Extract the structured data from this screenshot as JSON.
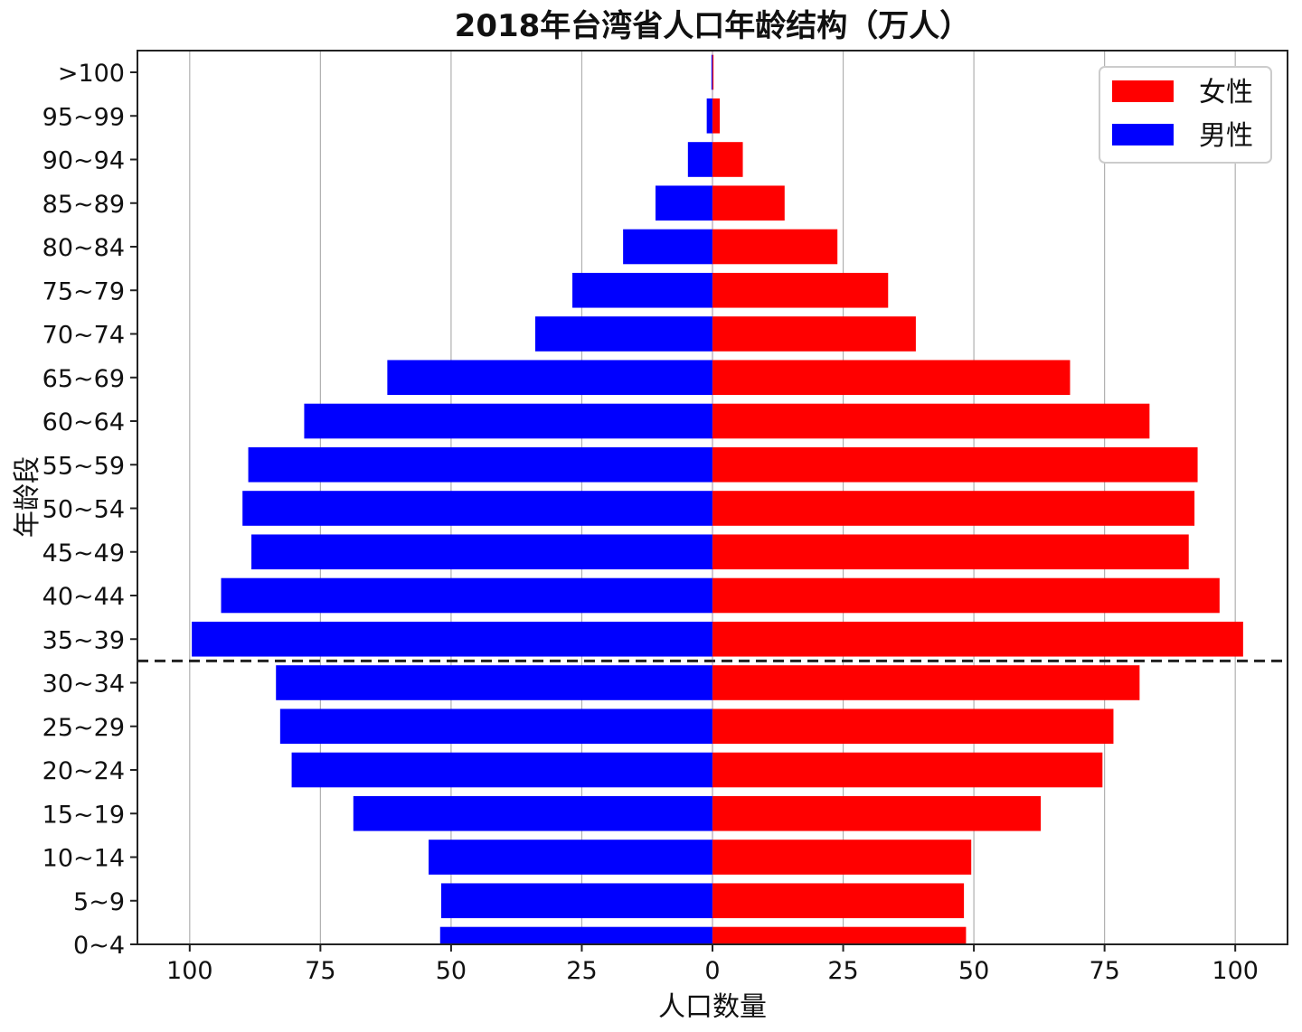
{
  "chart_data": {
    "type": "bar",
    "orientation": "horizontal",
    "subtype": "population-pyramid",
    "title": "2018年台湾省人口年龄结构（万人）",
    "xlabel": "人口数量",
    "ylabel": "年龄段",
    "categories": [
      "0~4",
      "5~9",
      "10~14",
      "15~19",
      "20~24",
      "25~29",
      "30~34",
      "35~39",
      "40~44",
      "45~49",
      "50~54",
      "55~59",
      "60~64",
      "65~69",
      "70~74",
      "75~79",
      "80~84",
      "85~89",
      "90~94",
      "95~99",
      ">100"
    ],
    "series": [
      {
        "name": "女性",
        "color": "#ff0000",
        "side": "right",
        "values": [
          48.5,
          48.1,
          49.5,
          62.8,
          74.6,
          76.7,
          81.7,
          101.5,
          97.0,
          91.1,
          92.2,
          92.8,
          83.6,
          68.4,
          38.9,
          33.6,
          23.9,
          13.8,
          5.8,
          1.4,
          0.2
        ]
      },
      {
        "name": "男性",
        "color": "#0000ff",
        "side": "left",
        "values": [
          52.1,
          51.9,
          54.3,
          68.7,
          80.5,
          82.7,
          83.5,
          99.6,
          94.0,
          88.2,
          89.9,
          88.8,
          78.1,
          62.2,
          33.9,
          26.8,
          17.1,
          10.9,
          4.7,
          1.1,
          0.2
        ]
      }
    ],
    "xlim": [
      -110,
      110
    ],
    "xticks": [
      -100,
      -75,
      -50,
      -25,
      0,
      25,
      50,
      75,
      100
    ],
    "xtick_labels": [
      "100",
      "75",
      "50",
      "25",
      "0",
      "25",
      "50",
      "75",
      "100"
    ],
    "grid": "x",
    "legend": {
      "position": "top-right",
      "entries": [
        "女性",
        "男性"
      ]
    },
    "reference_line": {
      "orientation": "horizontal",
      "between_categories": [
        "30~34",
        "35~39"
      ],
      "style": "dashed",
      "color": "#222222"
    }
  }
}
